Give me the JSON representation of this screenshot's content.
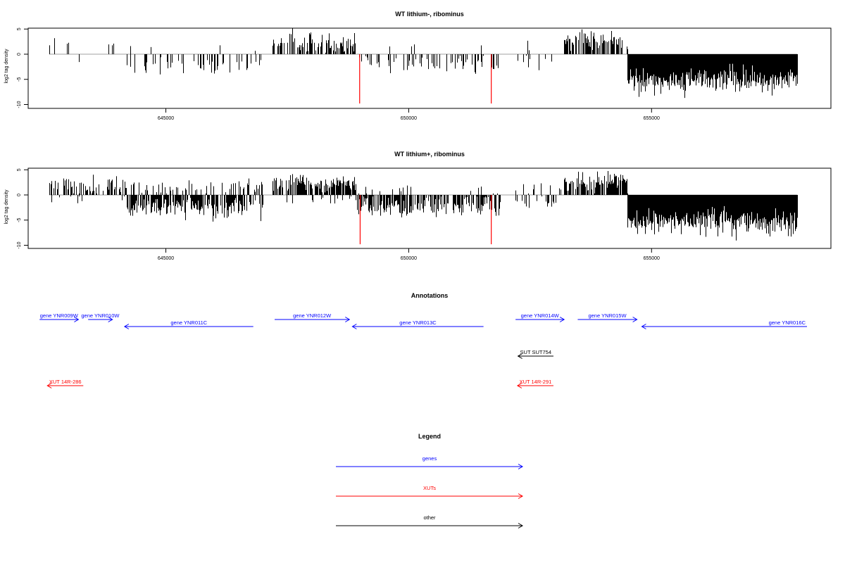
{
  "colors": {
    "gene": "#0000ff",
    "xut": "#ff0000",
    "other": "#000000",
    "marker": "#ff0000",
    "bars": "#000000",
    "baseline": "#808080"
  },
  "chart_data": [
    {
      "type": "bar",
      "title": "WT lithium-, ribominus",
      "ylabel": "log2 tag density",
      "xlim": [
        642600,
        658200
      ],
      "ylim": [
        -10,
        5.5
      ],
      "xticks": [
        "645000",
        "650000",
        "655000"
      ],
      "yticks": [
        "5",
        "0",
        "-5",
        "-10"
      ],
      "markers": [
        648990,
        651700
      ],
      "segments": [
        {
          "from": 642600,
          "to": 643500,
          "dir": "+",
          "density": 0.04,
          "mean": 2.5,
          "spread": 1.2
        },
        {
          "from": 642600,
          "to": 643500,
          "dir": "-",
          "density": 0.02,
          "mean": 2.5,
          "spread": 1.0
        },
        {
          "from": 643500,
          "to": 644200,
          "dir": "+",
          "density": 0.03,
          "mean": 2.5,
          "spread": 1.0
        },
        {
          "from": 644200,
          "to": 647000,
          "dir": "-",
          "density": 0.25,
          "mean": 2.2,
          "spread": 1.0
        },
        {
          "from": 644200,
          "to": 647000,
          "dir": "+",
          "density": 0.02,
          "mean": 1.0,
          "spread": 0.5
        },
        {
          "from": 647200,
          "to": 648900,
          "dir": "+",
          "density": 0.55,
          "mean": 2.3,
          "spread": 1.0
        },
        {
          "from": 648900,
          "to": 651900,
          "dir": "-",
          "density": 0.25,
          "mean": 2.0,
          "spread": 1.0
        },
        {
          "from": 648900,
          "to": 651900,
          "dir": "+",
          "density": 0.02,
          "mean": 1.5,
          "spread": 0.8
        },
        {
          "from": 652200,
          "to": 653200,
          "dir": "+",
          "density": 0.06,
          "mean": 1.8,
          "spread": 0.9
        },
        {
          "from": 652200,
          "to": 653200,
          "dir": "-",
          "density": 0.08,
          "mean": 1.8,
          "spread": 0.9
        },
        {
          "from": 653200,
          "to": 654500,
          "dir": "+",
          "density": 0.6,
          "mean": 2.5,
          "spread": 1.0
        },
        {
          "from": 654500,
          "to": 658000,
          "dir": "-",
          "density": 1.0,
          "mean": 5.3,
          "spread": 1.3
        }
      ]
    },
    {
      "type": "bar",
      "title": "WT lithium+, ribominus",
      "ylabel": "log2 tag density",
      "xlim": [
        642600,
        658200
      ],
      "ylim": [
        -10,
        5.5
      ],
      "xticks": [
        "645000",
        "650000",
        "655000"
      ],
      "yticks": [
        "5",
        "0",
        "-5",
        "-10"
      ],
      "markers": [
        649000,
        651700
      ],
      "segments": [
        {
          "from": 642600,
          "to": 644200,
          "dir": "+",
          "density": 0.5,
          "mean": 1.8,
          "spread": 0.9
        },
        {
          "from": 642600,
          "to": 644200,
          "dir": "-",
          "density": 0.1,
          "mean": 1.0,
          "spread": 0.6
        },
        {
          "from": 644200,
          "to": 647000,
          "dir": "-",
          "density": 0.7,
          "mean": 2.5,
          "spread": 1.0
        },
        {
          "from": 644200,
          "to": 647000,
          "dir": "+",
          "density": 0.25,
          "mean": 1.6,
          "spread": 0.8
        },
        {
          "from": 647200,
          "to": 648900,
          "dir": "+",
          "density": 0.75,
          "mean": 2.2,
          "spread": 0.9
        },
        {
          "from": 647200,
          "to": 648900,
          "dir": "-",
          "density": 0.15,
          "mean": 1.0,
          "spread": 0.5
        },
        {
          "from": 648900,
          "to": 651900,
          "dir": "-",
          "density": 0.7,
          "mean": 2.3,
          "spread": 1.0
        },
        {
          "from": 648900,
          "to": 651900,
          "dir": "+",
          "density": 0.1,
          "mean": 1.0,
          "spread": 0.5
        },
        {
          "from": 652200,
          "to": 653200,
          "dir": "+",
          "density": 0.15,
          "mean": 1.8,
          "spread": 0.9
        },
        {
          "from": 652200,
          "to": 653200,
          "dir": "-",
          "density": 0.2,
          "mean": 1.8,
          "spread": 0.9
        },
        {
          "from": 653200,
          "to": 654500,
          "dir": "+",
          "density": 0.75,
          "mean": 2.5,
          "spread": 1.0
        },
        {
          "from": 654500,
          "to": 658000,
          "dir": "-",
          "density": 1.0,
          "mean": 5.5,
          "spread": 1.3
        }
      ]
    }
  ],
  "annotations": {
    "title": "Annotations",
    "items": [
      {
        "label": "gene YNR009W",
        "kind": "gene",
        "dir": "+",
        "from": 642400,
        "to": 643200,
        "row": 0
      },
      {
        "label": "gene YNR010W",
        "kind": "gene",
        "dir": "+",
        "from": 643400,
        "to": 643900,
        "row": 0
      },
      {
        "label": "gene YNR011C",
        "kind": "gene",
        "dir": "-",
        "from": 644150,
        "to": 646800,
        "row": 1
      },
      {
        "label": "gene YNR012W",
        "kind": "gene",
        "dir": "+",
        "from": 647240,
        "to": 648780,
        "row": 0
      },
      {
        "label": "gene YNR013C",
        "kind": "gene",
        "dir": "-",
        "from": 648840,
        "to": 651540,
        "row": 1
      },
      {
        "label": "gene YNR014W",
        "kind": "gene",
        "dir": "+",
        "from": 652200,
        "to": 653200,
        "row": 0
      },
      {
        "label": "gene YNR015W",
        "kind": "gene",
        "dir": "+",
        "from": 653480,
        "to": 654700,
        "row": 0
      },
      {
        "label": "gene YNR016C",
        "kind": "gene",
        "dir": "-",
        "from": 654800,
        "to": 658200,
        "row": 1
      },
      {
        "label": "SUT SUT754",
        "kind": "other",
        "dir": "-",
        "from": 652250,
        "to": 652980,
        "row": 2
      },
      {
        "label": "XUT 14R-286",
        "kind": "xut",
        "dir": "-",
        "from": 642560,
        "to": 643300,
        "row": 3
      },
      {
        "label": "XUT 14R-291",
        "kind": "xut",
        "dir": "-",
        "from": 652240,
        "to": 652980,
        "row": 3
      }
    ]
  },
  "legend": {
    "title": "Legend",
    "items": [
      {
        "label": "genes",
        "kind": "gene"
      },
      {
        "label": "XUTs",
        "kind": "xut"
      },
      {
        "label": "other",
        "kind": "other"
      }
    ]
  }
}
